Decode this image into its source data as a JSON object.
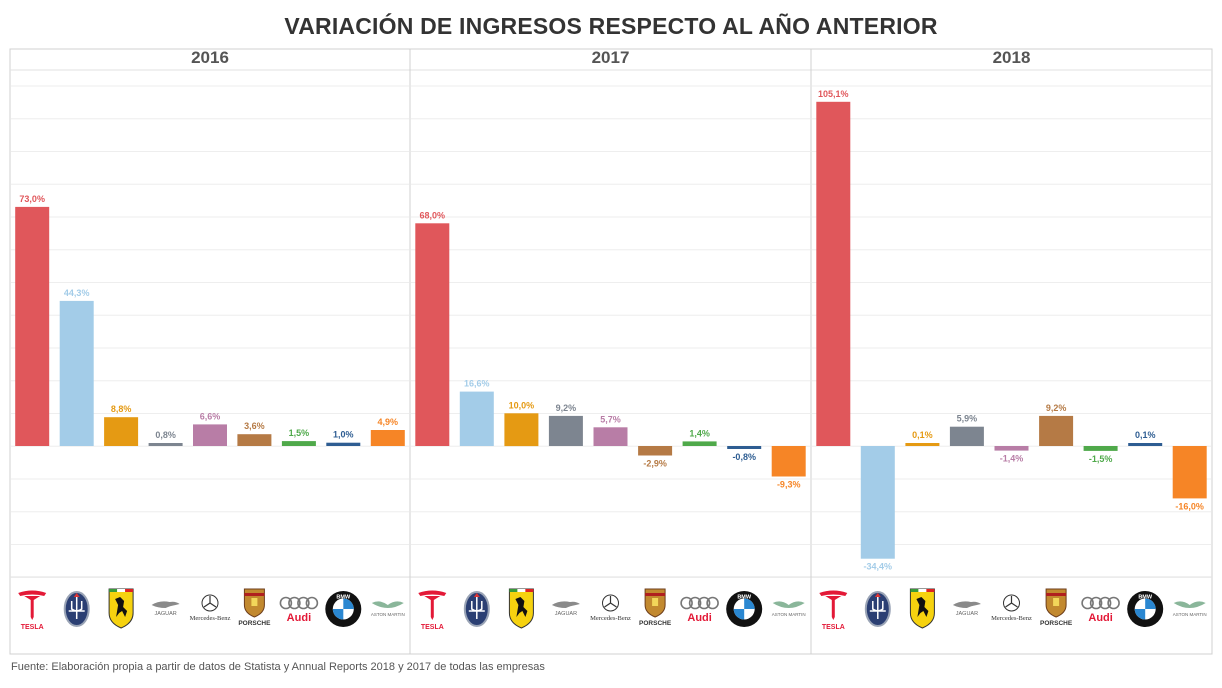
{
  "title": "VARIACIÓN DE INGRESOS RESPECTO AL AÑO ANTERIOR",
  "source": "Fuente: Elaboración propia a partir de datos de Statista y Annual Reports 2018 y 2017 de todas las empresas",
  "brands": [
    {
      "name": "Tesla",
      "logo_text": "TESLA",
      "color": "#E0575B",
      "icon": "tesla-logo-icon"
    },
    {
      "name": "Maserati",
      "logo_text": "",
      "color": "#A3CCE8",
      "icon": "maserati-trident-icon"
    },
    {
      "name": "Ferrari",
      "logo_text": "",
      "color": "#E59A13",
      "icon": "ferrari-prancing-horse-icon"
    },
    {
      "name": "Jaguar",
      "logo_text": "JAGUAR",
      "color": "#7D8590",
      "icon": "jaguar-leaper-icon"
    },
    {
      "name": "Mercedes-Benz",
      "logo_text": "Mercedes-Benz",
      "color": "#B87DA6",
      "icon": "mercedes-star-icon"
    },
    {
      "name": "Porsche",
      "logo_text": "PORSCHE",
      "color": "#B57A45",
      "icon": "porsche-crest-icon"
    },
    {
      "name": "Audi",
      "logo_text": "Audi",
      "color": "#4FA94A",
      "icon": "audi-rings-icon"
    },
    {
      "name": "BMW",
      "logo_text": "BMW",
      "color": "#2E5D92",
      "icon": "bmw-roundel-icon"
    },
    {
      "name": "Aston Martin",
      "logo_text": "ASTON MARTIN",
      "color": "#F68526",
      "icon": "aston-martin-wings-icon"
    }
  ],
  "chart_data": {
    "type": "bar",
    "title": "VARIACIÓN DE INGRESOS RESPECTO AL AÑO ANTERIOR",
    "categories": [
      "Tesla",
      "Maserati",
      "Ferrari",
      "Jaguar",
      "Mercedes-Benz",
      "Porsche",
      "Audi",
      "BMW",
      "Aston Martin"
    ],
    "ylim": [
      -40,
      110
    ],
    "grid": true,
    "unit": "%",
    "panels": [
      {
        "year": "2016",
        "values": [
          73.0,
          44.3,
          8.8,
          0.8,
          6.6,
          3.6,
          1.5,
          1.0,
          4.9
        ],
        "labels": [
          "73,0%",
          "44,3%",
          "8,8%",
          "0,8%",
          "6,6%",
          "3,6%",
          "1,5%",
          "1,0%",
          "4,9%"
        ]
      },
      {
        "year": "2017",
        "values": [
          68.0,
          16.6,
          10.0,
          9.2,
          5.7,
          -2.9,
          1.4,
          -0.8,
          -9.3
        ],
        "labels": [
          "68,0%",
          "16,6%",
          "10,0%",
          "9,2%",
          "5,7%",
          "-2,9%",
          "1,4%",
          "-0,8%",
          "-9,3%"
        ]
      },
      {
        "year": "2018",
        "values": [
          105.1,
          -34.4,
          0.1,
          5.9,
          -1.4,
          9.2,
          -1.5,
          0.1,
          -16.0
        ],
        "labels": [
          "105,1%",
          "-34,4%",
          "0,1%",
          "5,9%",
          "-1,4%",
          "9,2%",
          "-1,5%",
          "0,1%",
          "-16,0%"
        ]
      }
    ]
  }
}
